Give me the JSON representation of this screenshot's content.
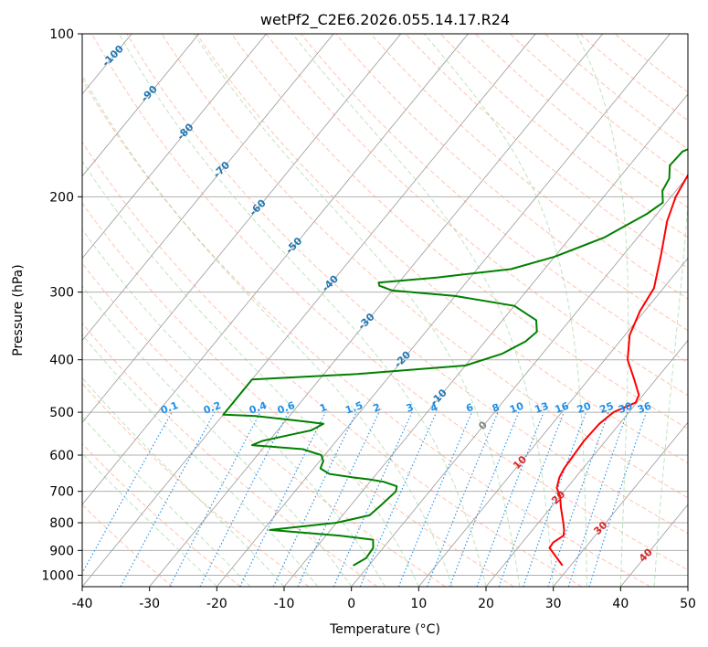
{
  "chart_data": {
    "type": "line",
    "title": "wetPf2_C2E6.2026.055.14.17.R24",
    "xlabel": "Temperature (°C)",
    "ylabel": "Pressure (hPa)",
    "xlim": [
      -40,
      50
    ],
    "ylim": [
      1050,
      100
    ],
    "y_scale": "log",
    "grid": true,
    "x_ticks": [
      -40,
      -30,
      -20,
      -10,
      0,
      10,
      20,
      30,
      40,
      50
    ],
    "y_ticks": [
      100,
      200,
      300,
      400,
      500,
      600,
      700,
      800,
      900,
      1000
    ],
    "colors": {
      "temperature": "#ff0000",
      "dewpoint": "#008000",
      "isotherm": "#999999",
      "dry_adiabat": "#ff9c7a",
      "moist_adiabat": "#7fc97f",
      "mixing_ratio": "#1f8fe8",
      "dry_adiabat_label": "#d62728",
      "isotherm_label": "#1f77b4"
    },
    "series": [
      {
        "key": "temperature",
        "points": [
          [
            28.8,
            960
          ],
          [
            24.7,
            890
          ],
          [
            24.6,
            870
          ],
          [
            25.3,
            845
          ],
          [
            24.7,
            825
          ],
          [
            23.7,
            800
          ],
          [
            21.5,
            750
          ],
          [
            20.0,
            715
          ],
          [
            18.5,
            690
          ],
          [
            17.6,
            660
          ],
          [
            17.2,
            635
          ],
          [
            17.0,
            600
          ],
          [
            16.8,
            565
          ],
          [
            17.0,
            525
          ],
          [
            17.7,
            500
          ],
          [
            19.8,
            480
          ],
          [
            19.4,
            465
          ],
          [
            16.8,
            435
          ],
          [
            13.4,
            400
          ],
          [
            10.7,
            360
          ],
          [
            9.3,
            325
          ],
          [
            8.6,
            295
          ],
          [
            5.5,
            255
          ],
          [
            2.4,
            222
          ],
          [
            0.7,
            200
          ],
          [
            -0.5,
            175
          ],
          [
            -1.2,
            158
          ],
          [
            -2.2,
            143
          ],
          [
            -2.0,
            130
          ],
          [
            -1.5,
            118
          ],
          [
            -0.8,
            110
          ],
          [
            -0.5,
            100
          ]
        ]
      },
      {
        "key": "dewpoint",
        "points": [
          [
            -2.3,
            960
          ],
          [
            -1.3,
            930
          ],
          [
            -1.5,
            890
          ],
          [
            -2.5,
            860
          ],
          [
            -8.0,
            845
          ],
          [
            -19.0,
            825
          ],
          [
            -10.0,
            800
          ],
          [
            -6.0,
            775
          ],
          [
            -5.5,
            740
          ],
          [
            -5.0,
            700
          ],
          [
            -5.5,
            685
          ],
          [
            -8.0,
            672
          ],
          [
            -10.5,
            665
          ],
          [
            -13.0,
            660
          ],
          [
            -17.0,
            650
          ],
          [
            -19.0,
            635
          ],
          [
            -19.5,
            615
          ],
          [
            -20.5,
            600
          ],
          [
            -24.0,
            585
          ],
          [
            -32.0,
            575
          ],
          [
            -31.0,
            565
          ],
          [
            -27.0,
            548
          ],
          [
            -25.0,
            540
          ],
          [
            -24.0,
            525
          ],
          [
            -27.0,
            520
          ],
          [
            -35.0,
            508
          ],
          [
            -40.0,
            505
          ],
          [
            -40.0,
            435
          ],
          [
            -25.0,
            425
          ],
          [
            -10.0,
            410
          ],
          [
            -6.0,
            390
          ],
          [
            -4.0,
            370
          ],
          [
            -3.5,
            355
          ],
          [
            -5.0,
            338
          ],
          [
            -10.0,
            318
          ],
          [
            -20.0,
            305
          ],
          [
            -30.0,
            298
          ],
          [
            -32.5,
            292
          ],
          [
            -33.0,
            288
          ],
          [
            -25.0,
            282
          ],
          [
            -15.0,
            272
          ],
          [
            -10.0,
            258
          ],
          [
            -5.0,
            238
          ],
          [
            -1.5,
            215
          ],
          [
            -0.5,
            205
          ],
          [
            -2.0,
            195
          ],
          [
            -2.5,
            185
          ],
          [
            -4.0,
            175
          ],
          [
            -3.8,
            165
          ],
          [
            -1.5,
            158
          ],
          [
            -1.0,
            150
          ],
          [
            -3.0,
            140
          ],
          [
            -4.5,
            128
          ],
          [
            -4.3,
            115
          ],
          [
            -5.0,
            110
          ],
          [
            -2.0,
            104
          ],
          [
            -0.8,
            100
          ]
        ]
      }
    ],
    "isotherm_labels": [
      -100,
      -90,
      -80,
      -70,
      -60,
      -50,
      -40,
      -30,
      -20,
      -10,
      0,
      10,
      20,
      30,
      40
    ],
    "mixing_ratio_labels": [
      "0.1",
      "0.2",
      "0.4",
      "0.6",
      "1",
      "1.5",
      "2",
      "3",
      "4",
      "6",
      "8",
      "10",
      "13",
      "16",
      "20",
      "25",
      "30",
      "36"
    ]
  }
}
